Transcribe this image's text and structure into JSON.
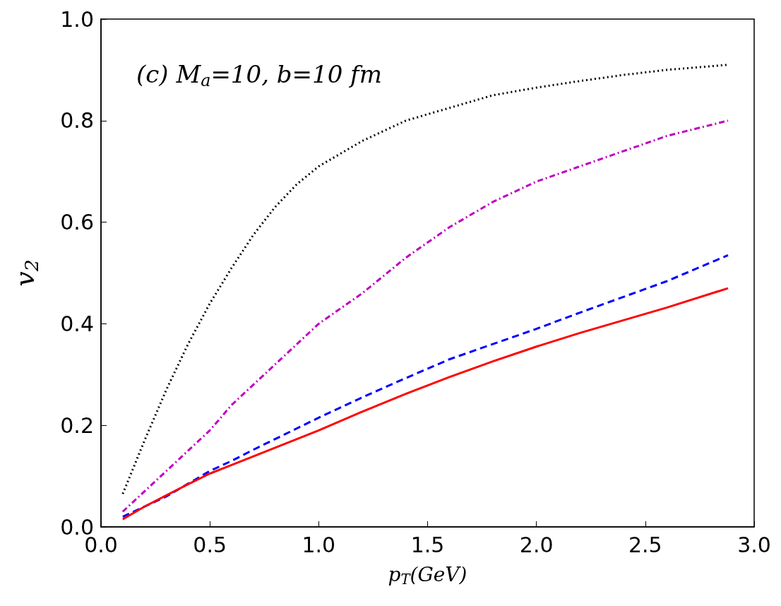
{
  "chart_data": {
    "type": "line",
    "xlabel": "p$_{T}$(GeV)",
    "ylabel": "v$_{2}$",
    "annotations": [
      "(c) M$_{a}$=10, b=10 fm"
    ],
    "xlim": [
      0,
      3
    ],
    "ylim": [
      0,
      1
    ],
    "xticks": [
      {
        "value": 0,
        "label": "0.0"
      },
      {
        "value": 0.5,
        "label": "0.5"
      },
      {
        "value": 1,
        "label": "1.0"
      },
      {
        "value": 1.5,
        "label": "1.5"
      },
      {
        "value": 2,
        "label": "2.0"
      },
      {
        "value": 2.5,
        "label": "2.5"
      },
      {
        "value": 3,
        "label": "3.0"
      }
    ],
    "yticks": [
      {
        "value": 0,
        "label": "0.0"
      },
      {
        "value": 0.2,
        "label": "0.2"
      },
      {
        "value": 0.4,
        "label": "0.4"
      },
      {
        "value": 0.6,
        "label": "0.6"
      },
      {
        "value": 0.8,
        "label": "0.8"
      },
      {
        "value": 1,
        "label": "1.0"
      }
    ],
    "grid": false,
    "marker": "none",
    "x": [
      0.1,
      0.2,
      0.3,
      0.4,
      0.5,
      0.6,
      0.7,
      0.8,
      0.9,
      1.0,
      1.2,
      1.4,
      1.6,
      1.8,
      2.0,
      2.2,
      2.4,
      2.6,
      2.88
    ],
    "series": [
      {
        "color": "#000000",
        "line_style": "dotted",
        "values": [
          0.065,
          0.17,
          0.27,
          0.36,
          0.44,
          0.51,
          0.575,
          0.63,
          0.675,
          0.71,
          0.76,
          0.8,
          0.825,
          0.85,
          0.865,
          0.878,
          0.89,
          0.9,
          0.91
        ]
      },
      {
        "color": "#bf00bf",
        "line_style": "dashdot",
        "values": [
          0.03,
          0.07,
          0.11,
          0.15,
          0.19,
          0.24,
          0.28,
          0.32,
          0.36,
          0.4,
          0.46,
          0.53,
          0.59,
          0.64,
          0.68,
          0.71,
          0.74,
          0.77,
          0.8
        ]
      },
      {
        "color": "#0000ff",
        "line_style": "dashed",
        "values": [
          0.02,
          0.04,
          0.06,
          0.085,
          0.11,
          0.13,
          0.152,
          0.173,
          0.194,
          0.215,
          0.255,
          0.293,
          0.33,
          0.36,
          0.39,
          0.422,
          0.453,
          0.484,
          0.535
        ]
      },
      {
        "color": "#ff0000",
        "line_style": "solid",
        "values": [
          0.015,
          0.04,
          0.062,
          0.084,
          0.105,
          0.122,
          0.139,
          0.156,
          0.173,
          0.19,
          0.227,
          0.262,
          0.295,
          0.326,
          0.355,
          0.382,
          0.407,
          0.432,
          0.47
        ]
      }
    ]
  }
}
